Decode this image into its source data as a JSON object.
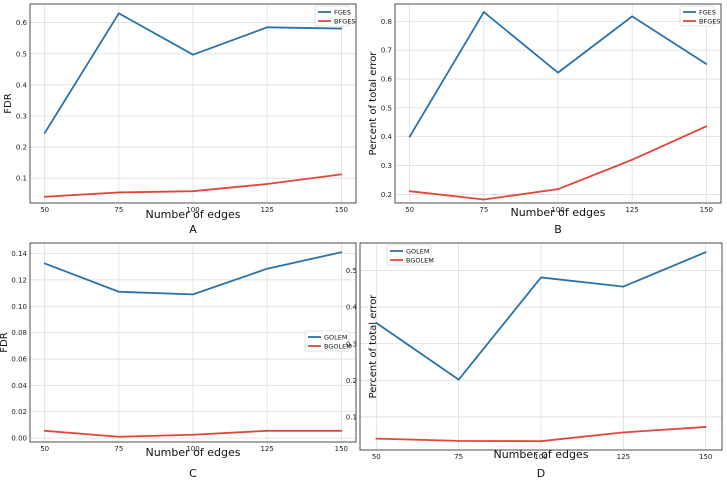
{
  "chart_data": [
    {
      "type": "line",
      "panel_label": "A",
      "categories": [
        50,
        75,
        100,
        125,
        150
      ],
      "series": [
        {
          "name": "FGES",
          "values": [
            0.245,
            0.63,
            0.497,
            0.585,
            0.581
          ],
          "color": "#2b73a6"
        },
        {
          "name": "BFGES",
          "values": [
            0.04,
            0.054,
            0.058,
            0.081,
            0.112
          ],
          "color": "#e0473b"
        }
      ],
      "xlabel": "Number of edges",
      "ylabel": "FDR",
      "ylim": [
        0.02,
        0.66
      ],
      "yticks": [
        0.1,
        0.2,
        0.3,
        0.4,
        0.5,
        0.6
      ],
      "ytick_labels": [
        "0.1",
        "0.2",
        "0.3",
        "0.4",
        "0.5",
        "0.6"
      ],
      "legend": "top-right",
      "grid": true
    },
    {
      "type": "line",
      "panel_label": "B",
      "categories": [
        50,
        75,
        100,
        125,
        150
      ],
      "series": [
        {
          "name": "FGES",
          "values": [
            0.4,
            0.832,
            0.622,
            0.817,
            0.652
          ],
          "color": "#2b73a6"
        },
        {
          "name": "BFGES",
          "values": [
            0.211,
            0.182,
            0.218,
            0.32,
            0.436
          ],
          "color": "#e0473b"
        }
      ],
      "xlabel": "Number of edges",
      "ylabel": "Percent of total error",
      "ylim": [
        0.17,
        0.86
      ],
      "yticks": [
        0.2,
        0.3,
        0.4,
        0.5,
        0.6,
        0.7,
        0.8
      ],
      "ytick_labels": [
        "0.2",
        "0.3",
        "0.4",
        "0.5",
        "0.6",
        "0.7",
        "0.8"
      ],
      "legend": "top-right",
      "grid": true
    },
    {
      "type": "line",
      "panel_label": "C",
      "categories": [
        50,
        75,
        100,
        125,
        150
      ],
      "series": [
        {
          "name": "GOLEM",
          "values": [
            0.1325,
            0.111,
            0.109,
            0.1285,
            0.141
          ],
          "color": "#2b73a6"
        },
        {
          "name": "BGOLEM",
          "values": [
            0.0055,
            0.001,
            0.0025,
            0.0055,
            0.0055
          ],
          "color": "#e0473b"
        }
      ],
      "xlabel": "Number of edges",
      "ylabel": "FDR",
      "ylim": [
        -0.003,
        0.148
      ],
      "yticks": [
        0.0,
        0.02,
        0.04,
        0.06,
        0.08,
        0.1,
        0.12,
        0.14
      ],
      "ytick_labels": [
        "0.00",
        "0.02",
        "0.04",
        "0.06",
        "0.08",
        "0.10",
        "0.12",
        "0.14"
      ],
      "legend": "center-right",
      "grid": true
    },
    {
      "type": "line",
      "panel_label": "D",
      "categories": [
        50,
        75,
        100,
        125,
        150
      ],
      "series": [
        {
          "name": "GOLEM",
          "values": [
            0.357,
            0.202,
            0.481,
            0.456,
            0.55
          ],
          "color": "#2b73a6"
        },
        {
          "name": "BGOLEM",
          "values": [
            0.041,
            0.035,
            0.034,
            0.058,
            0.073
          ],
          "color": "#e0473b"
        }
      ],
      "xlabel": "Number of edges",
      "ylabel": "Percent of total error",
      "ylim": [
        0.01,
        0.575
      ],
      "yticks": [
        0.1,
        0.2,
        0.3,
        0.4,
        0.5
      ],
      "ytick_labels": [
        "0.1",
        "0.2",
        "0.3",
        "0.4",
        "0.5"
      ],
      "legend": "top-left",
      "grid": true
    }
  ]
}
